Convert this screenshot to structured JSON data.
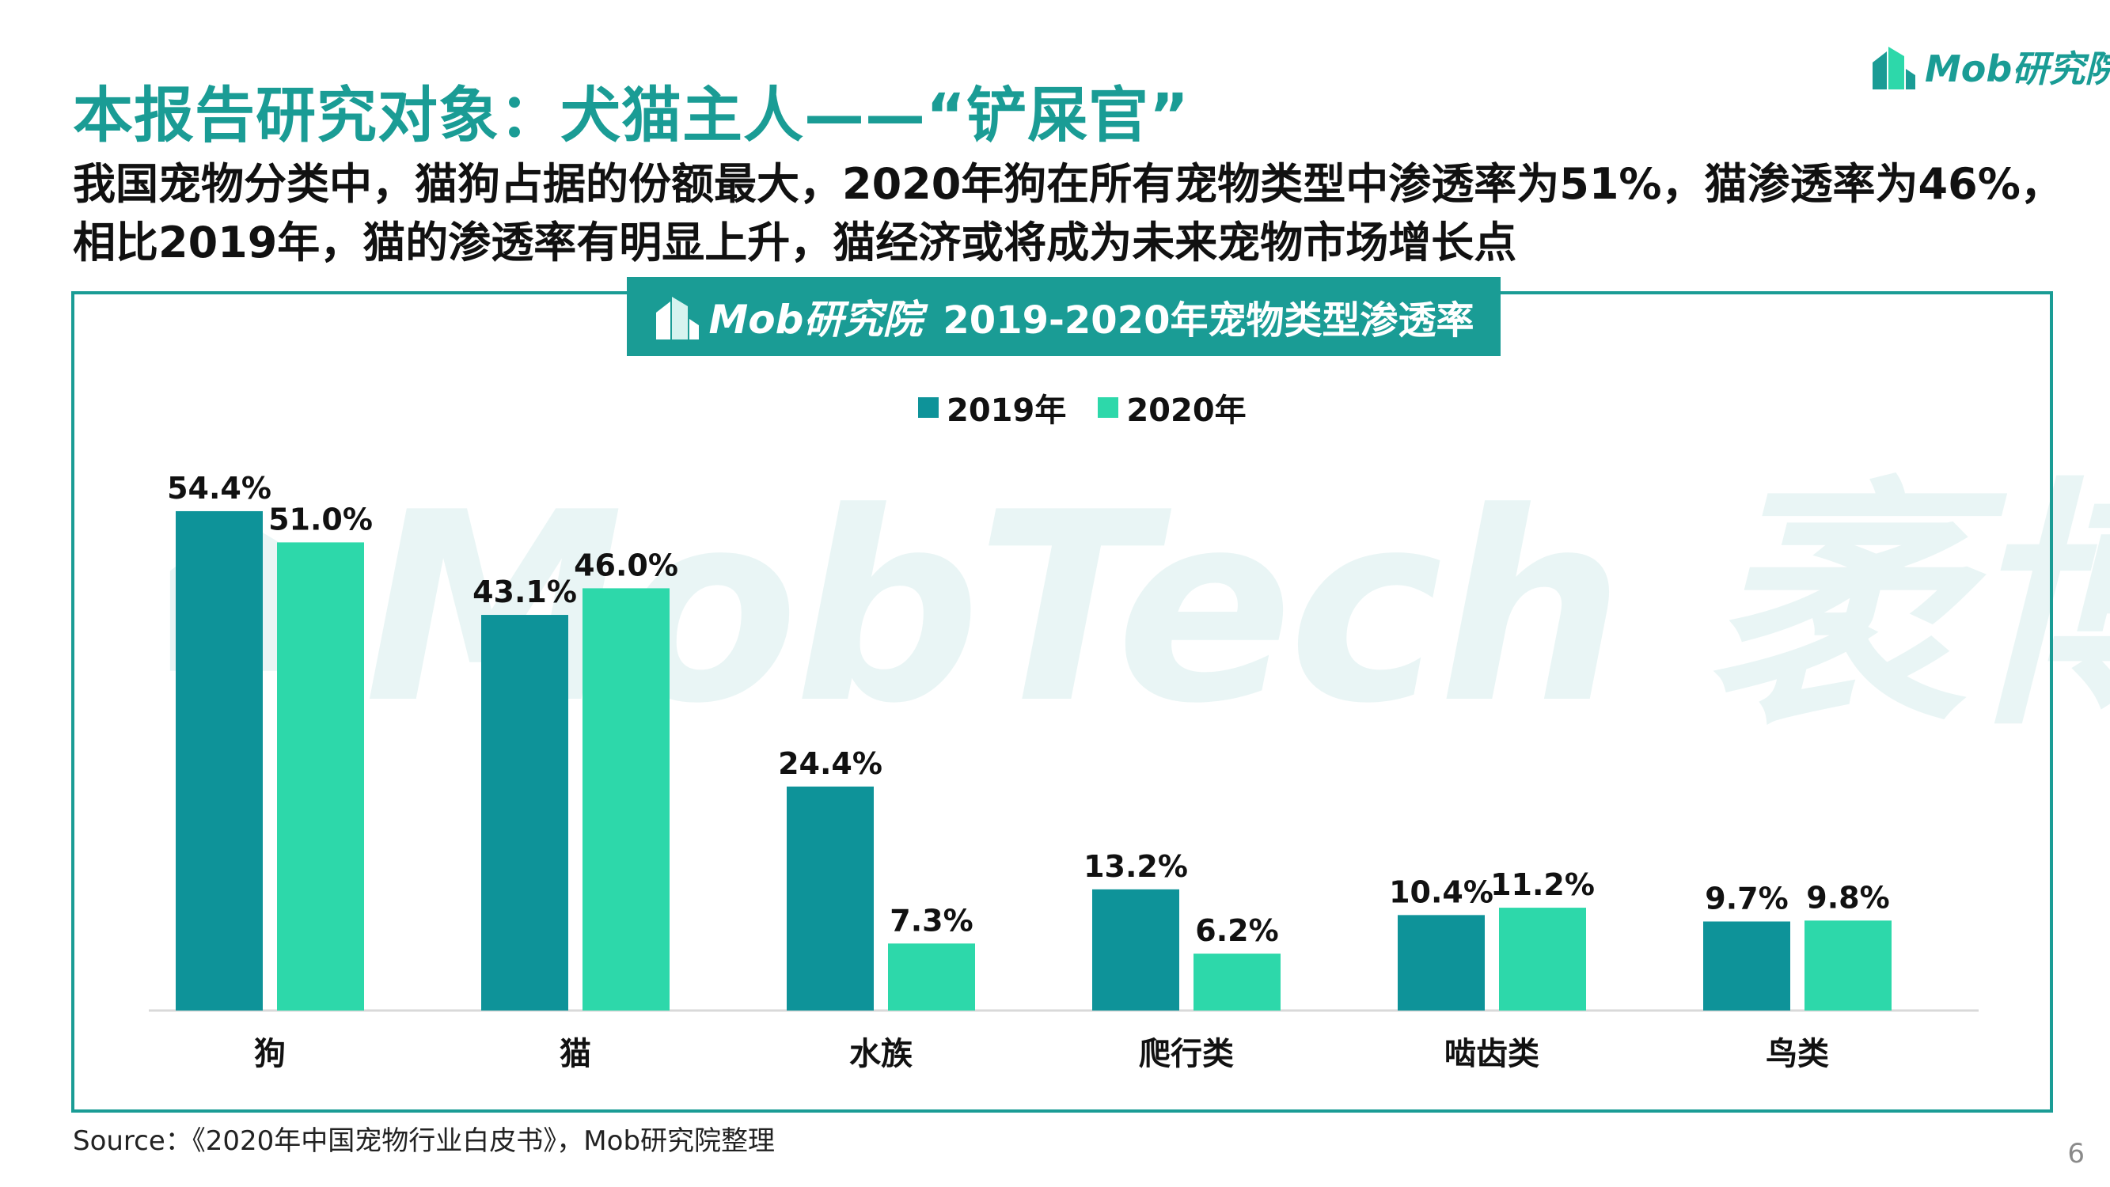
{
  "title": "本报告研究对象：犬猫主人——“铲屎官”",
  "subtitle_lines": [
    "我国宠物分类中，猫狗占据的份额最大，2020年狗在所有宠物类型中渗透率为51%，猫渗透率为46%，",
    "相比2019年，猫的渗透率有明显上升，猫经济或将成为未来宠物市场增长点"
  ],
  "brand": {
    "logo_text": "Mob研究院",
    "watermark_text": "MobTech 袤博"
  },
  "colors": {
    "accent": "#1a9c95",
    "series_2019": "#0e9399",
    "series_2020": "#2dd8aa"
  },
  "chart_data": {
    "type": "bar",
    "title": "2019-2020年宠物类型渗透率",
    "categories": [
      "狗",
      "猫",
      "水族",
      "爬行类",
      "啮齿类",
      "鸟类"
    ],
    "series": [
      {
        "name": "2019年",
        "values": [
          54.4,
          43.1,
          24.4,
          13.2,
          10.4,
          9.7
        ],
        "labels": [
          "54.4%",
          "43.1%",
          "24.4%",
          "13.2%",
          "10.4%",
          "9.7%"
        ]
      },
      {
        "name": "2020年",
        "values": [
          51.0,
          46.0,
          7.3,
          6.2,
          11.2,
          9.8
        ],
        "labels": [
          "51.0%",
          "46.0%",
          "7.3%",
          "6.2%",
          "11.2%",
          "9.8%"
        ]
      }
    ],
    "unit": "%",
    "legend_position": "top-center",
    "grid": false
  },
  "source": "Source：《2020年中国宠物行业白皮书》，Mob研究院整理",
  "page_number": "6"
}
